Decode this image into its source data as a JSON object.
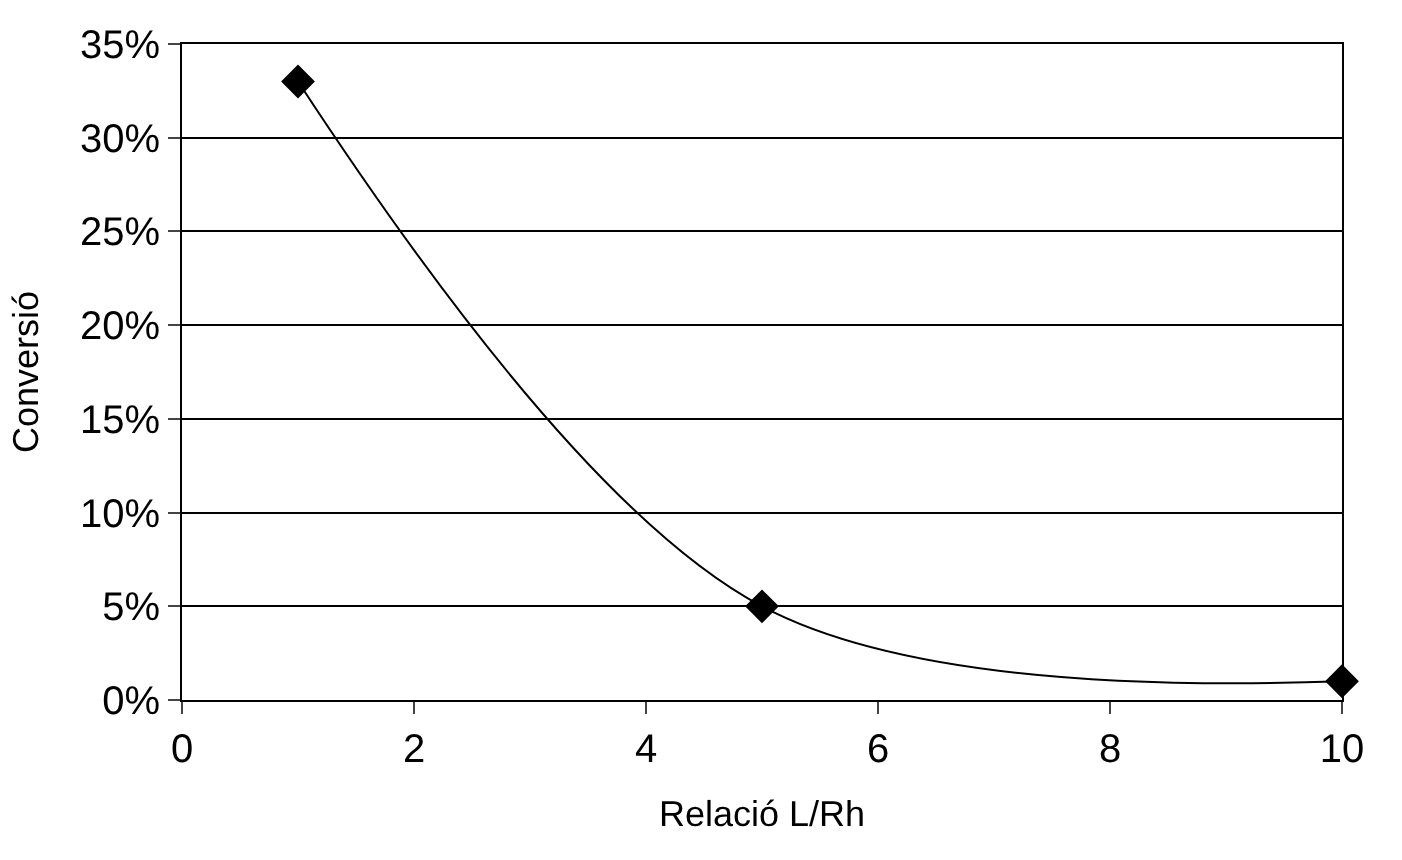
{
  "chart_data": {
    "type": "line",
    "xlabel": "Relació L/Rh",
    "ylabel": "Conversió",
    "x": [
      1,
      5,
      10
    ],
    "series": [
      {
        "color": "#000000",
        "values": [
          33,
          5,
          1
        ]
      }
    ],
    "xlim": [
      0,
      10
    ],
    "xticks": [
      0,
      2,
      4,
      6,
      8,
      10
    ],
    "ylim": [
      0,
      35
    ],
    "yticks": [
      {
        "value": 0,
        "label": "0%"
      },
      {
        "value": 5,
        "label": "5%"
      },
      {
        "value": 10,
        "label": "10%"
      },
      {
        "value": 15,
        "label": "15%"
      },
      {
        "value": 20,
        "label": "20%"
      },
      {
        "value": 25,
        "label": "25%"
      },
      {
        "value": 30,
        "label": "30%"
      },
      {
        "value": 35,
        "label": "35%"
      }
    ],
    "grid": "y",
    "marker": "diamond",
    "line_style": "solid"
  }
}
